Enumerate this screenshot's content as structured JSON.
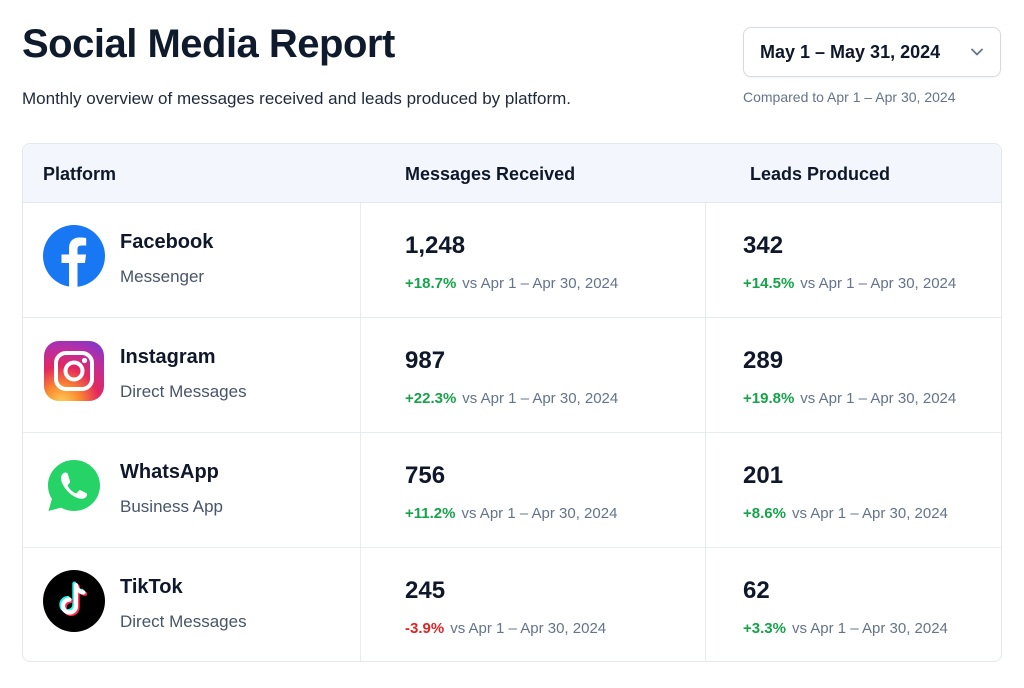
{
  "header": {
    "title": "Social Media Report",
    "subtitle": "Monthly overview of messages received and leads produced by platform.",
    "date_range": "May 1 – May 31, 2024",
    "compare_text": "Compared to Apr 1 – Apr 30, 2024"
  },
  "table": {
    "columns": [
      "Platform",
      "Messages Received",
      "Leads Produced"
    ],
    "rows": [
      {
        "platform": "Facebook",
        "channel": "Messenger",
        "icon": "facebook-icon",
        "messages": "1,248",
        "messages_delta": "+18.7%",
        "messages_trend": "up",
        "leads": "342",
        "leads_delta": "+14.5%",
        "leads_trend": "up",
        "compare": "vs Apr 1 – Apr 30, 2024"
      },
      {
        "platform": "Instagram",
        "channel": "Direct Messages",
        "icon": "instagram-icon",
        "messages": "987",
        "messages_delta": "+22.3%",
        "messages_trend": "up",
        "leads": "289",
        "leads_delta": "+19.8%",
        "leads_trend": "up",
        "compare": "vs Apr 1 – Apr 30, 2024"
      },
      {
        "platform": "WhatsApp",
        "channel": "Business App",
        "icon": "whatsapp-icon",
        "messages": "756",
        "messages_delta": "+11.2%",
        "messages_trend": "up",
        "leads": "201",
        "leads_delta": "+8.6%",
        "leads_trend": "up",
        "compare": "vs Apr 1 – Apr 30, 2024"
      },
      {
        "platform": "TikTok",
        "channel": "Direct Messages",
        "icon": "tiktok-icon",
        "messages": "245",
        "messages_delta": "-3.9%",
        "messages_trend": "down",
        "leads": "62",
        "leads_delta": "+3.3%",
        "leads_trend": "up",
        "compare": "vs Apr 1 – Apr 30, 2024"
      }
    ]
  },
  "colors": {
    "positive": "#16a34a",
    "negative": "#dc2626",
    "header_bg": "#f3f7fd",
    "facebook": "#1877f2",
    "whatsapp": "#25d366",
    "tiktok": "#000000"
  }
}
